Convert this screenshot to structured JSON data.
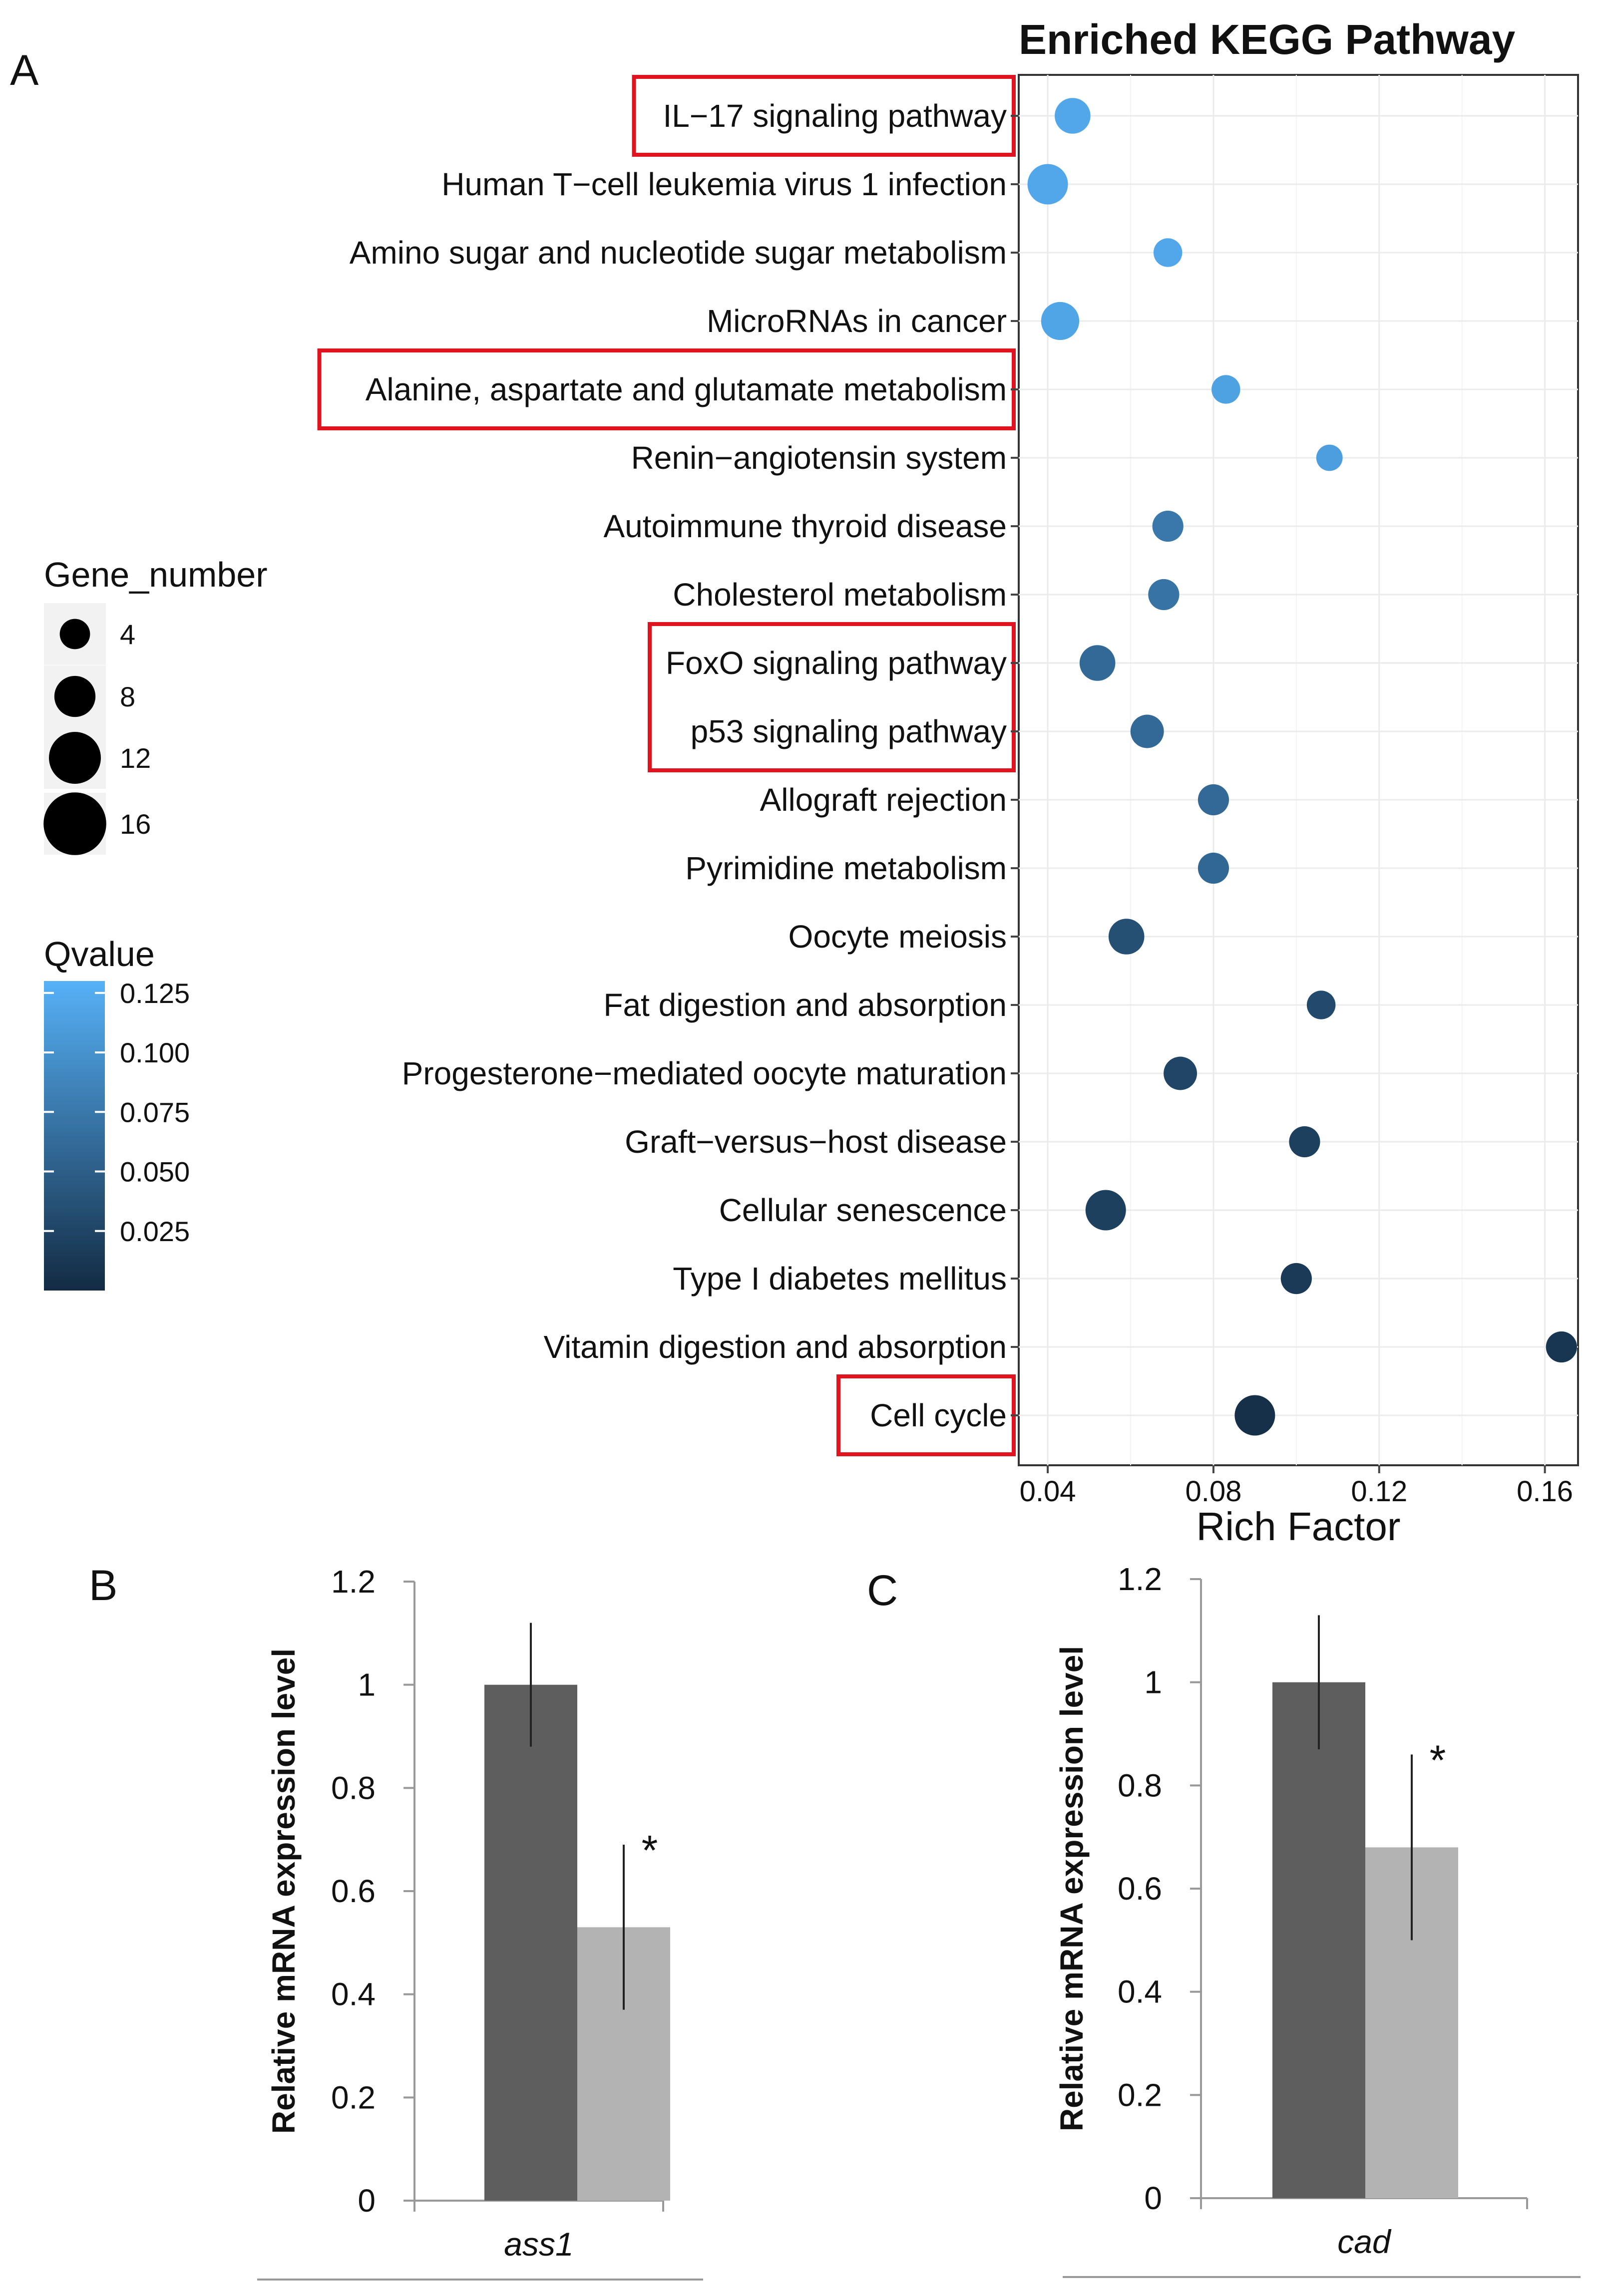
{
  "panels": {
    "a": "A",
    "b": "B",
    "c": "C"
  },
  "colors": {
    "qvalue_low": "#132b43",
    "qvalue_high": "#56b1f7",
    "highlight_box": "#e0141e",
    "bar_control": "#5e5e5e",
    "bar_treated": "#b3b3b3"
  },
  "chart_data": [
    {
      "type": "scatter",
      "title": "Enriched KEGG Pathway",
      "xlabel": "Rich Factor",
      "ylabel": "",
      "xlim": [
        0.033,
        0.168
      ],
      "xticks": [
        0.04,
        0.08,
        0.12,
        0.16
      ],
      "xtick_labels": [
        "0.04",
        "0.08",
        "0.12",
        "0.16"
      ],
      "grid": true,
      "points": [
        {
          "pathway": "IL−17 signaling pathway",
          "rich_factor": 0.046,
          "gene_number": 8,
          "qvalue": 0.12,
          "highlighted": true
        },
        {
          "pathway": "Human T−cell leukemia virus 1 infection",
          "rich_factor": 0.04,
          "gene_number": 10,
          "qvalue": 0.12,
          "highlighted": false
        },
        {
          "pathway": "Amino sugar and nucleotide sugar metabolism",
          "rich_factor": 0.069,
          "gene_number": 5,
          "qvalue": 0.12,
          "highlighted": false
        },
        {
          "pathway": "MicroRNAs in cancer",
          "rich_factor": 0.043,
          "gene_number": 9,
          "qvalue": 0.118,
          "highlighted": false
        },
        {
          "pathway": "Alanine, aspartate and glutamate metabolism",
          "rich_factor": 0.083,
          "gene_number": 5,
          "qvalue": 0.115,
          "highlighted": true
        },
        {
          "pathway": "Renin−angiotensin system",
          "rich_factor": 0.108,
          "gene_number": 4,
          "qvalue": 0.112,
          "highlighted": false
        },
        {
          "pathway": "Autoimmune thyroid disease",
          "rich_factor": 0.069,
          "gene_number": 6,
          "qvalue": 0.075,
          "highlighted": false
        },
        {
          "pathway": "Cholesterol metabolism",
          "rich_factor": 0.068,
          "gene_number": 6,
          "qvalue": 0.07,
          "highlighted": false
        },
        {
          "pathway": "FoxO signaling pathway",
          "rich_factor": 0.052,
          "gene_number": 8,
          "qvalue": 0.06,
          "highlighted": true
        },
        {
          "pathway": "p53 signaling pathway",
          "rich_factor": 0.064,
          "gene_number": 7,
          "qvalue": 0.06,
          "highlighted": true
        },
        {
          "pathway": "Allograft rejection",
          "rich_factor": 0.08,
          "gene_number": 6,
          "qvalue": 0.06,
          "highlighted": false
        },
        {
          "pathway": "Pyrimidine metabolism",
          "rich_factor": 0.08,
          "gene_number": 6,
          "qvalue": 0.058,
          "highlighted": false
        },
        {
          "pathway": "Oocyte meiosis",
          "rich_factor": 0.059,
          "gene_number": 8,
          "qvalue": 0.035,
          "highlighted": false
        },
        {
          "pathway": "Fat digestion and absorption",
          "rich_factor": 0.106,
          "gene_number": 5,
          "qvalue": 0.03,
          "highlighted": false
        },
        {
          "pathway": "Progesterone−mediated oocyte maturation",
          "rich_factor": 0.072,
          "gene_number": 7,
          "qvalue": 0.025,
          "highlighted": false
        },
        {
          "pathway": "Graft−versus−host disease",
          "rich_factor": 0.102,
          "gene_number": 6,
          "qvalue": 0.02,
          "highlighted": false
        },
        {
          "pathway": "Cellular senescence",
          "rich_factor": 0.054,
          "gene_number": 10,
          "qvalue": 0.02,
          "highlighted": false
        },
        {
          "pathway": "Type I diabetes mellitus",
          "rich_factor": 0.1,
          "gene_number": 6,
          "qvalue": 0.015,
          "highlighted": false
        },
        {
          "pathway": "Vitamin digestion and absorption",
          "rich_factor": 0.164,
          "gene_number": 6,
          "qvalue": 0.01,
          "highlighted": false
        },
        {
          "pathway": "Cell cycle",
          "rich_factor": 0.09,
          "gene_number": 10,
          "qvalue": 0.005,
          "highlighted": true
        }
      ],
      "legend_size": {
        "title": "Gene_number",
        "values": [
          4,
          8,
          12,
          16
        ],
        "labels": [
          "4",
          "8",
          "12",
          "16"
        ],
        "placement": "left"
      },
      "legend_color": {
        "title": "Qvalue",
        "range": [
          0,
          0.13
        ],
        "ticks": [
          0.125,
          0.1,
          0.075,
          0.05,
          0.025
        ],
        "tick_labels": [
          "0.125",
          "0.100",
          "0.075",
          "0.050",
          "0.025"
        ],
        "placement": "left"
      }
    },
    {
      "type": "bar",
      "categories": [
        "ass1"
      ],
      "series": [
        {
          "values": [
            1.0
          ],
          "error": [
            0.12
          ]
        },
        {
          "values": [
            0.53
          ],
          "error": [
            0.16
          ]
        }
      ],
      "significance": [
        "",
        "*"
      ],
      "xlabel": "",
      "ylabel": "Relative mRNA expression level",
      "ylim": [
        0,
        1.2
      ],
      "yticks": [
        0,
        0.2,
        0.4,
        0.6,
        0.8,
        1,
        1.2
      ],
      "ytick_labels": [
        "0",
        "0.2",
        "0.4",
        "0.6",
        "0.8",
        "1",
        "1.2"
      ]
    },
    {
      "type": "bar",
      "categories": [
        "cad"
      ],
      "series": [
        {
          "values": [
            1.0
          ],
          "error": [
            0.13
          ]
        },
        {
          "values": [
            0.68
          ],
          "error": [
            0.18
          ]
        }
      ],
      "significance": [
        "",
        "*"
      ],
      "xlabel": "",
      "ylabel": "Relative mRNA expression level",
      "ylim": [
        0,
        1.2
      ],
      "yticks": [
        0,
        0.2,
        0.4,
        0.6,
        0.8,
        1,
        1.2
      ],
      "ytick_labels": [
        "0",
        "0.2",
        "0.4",
        "0.6",
        "0.8",
        "1",
        "1.2"
      ]
    }
  ]
}
